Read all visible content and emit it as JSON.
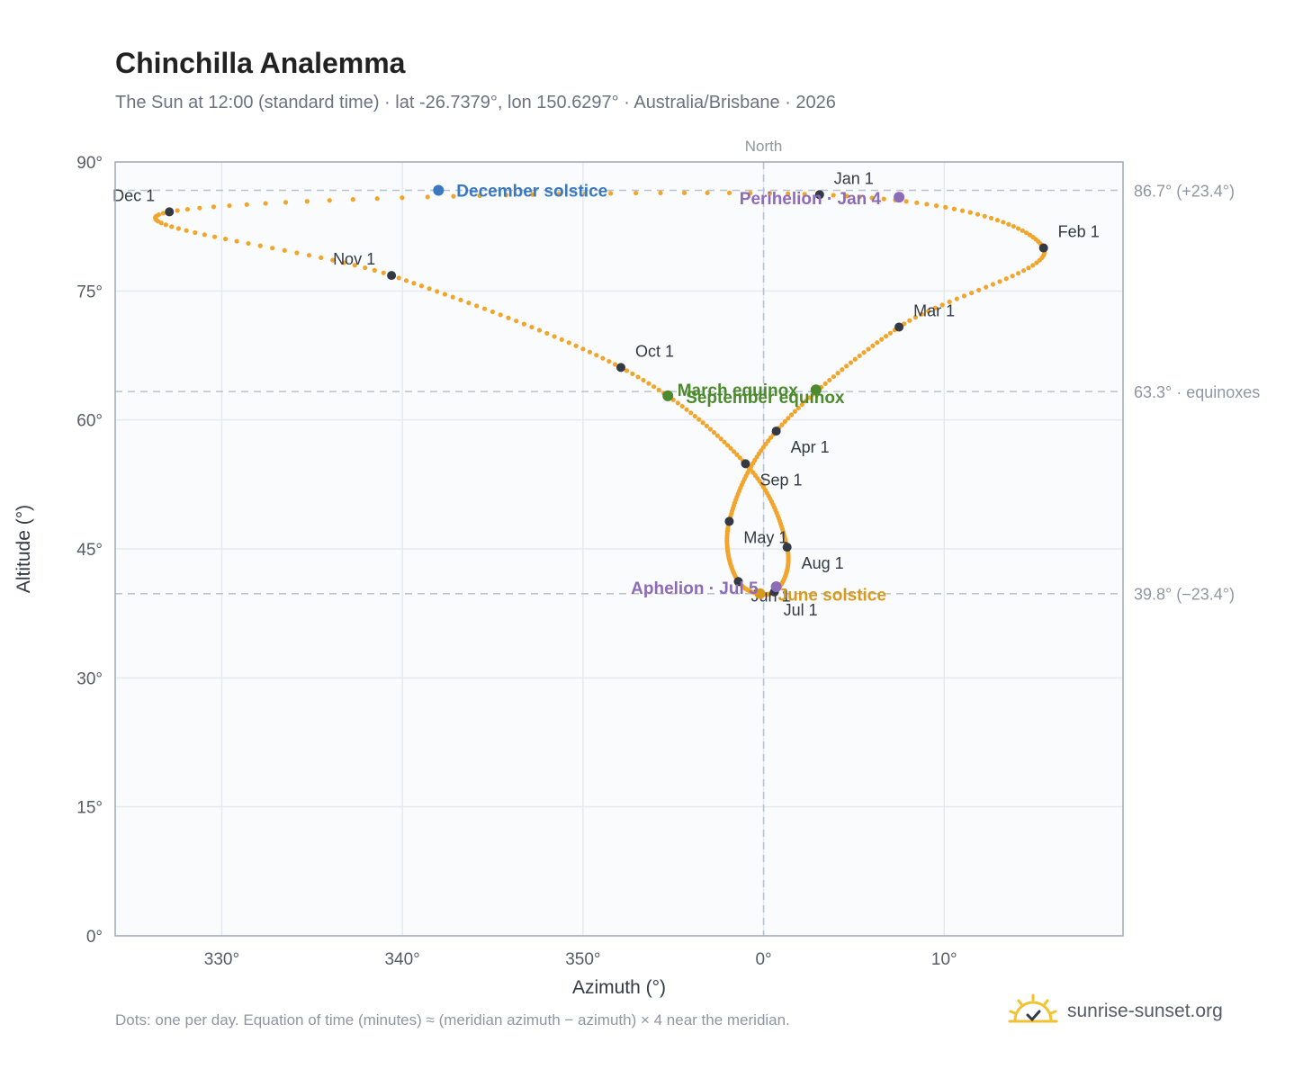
{
  "title": "Chinchilla Analemma",
  "subtitle": "The Sun at 12:00 (standard time) · lat -26.7379°, lon 150.6297° · Australia/Brisbane · 2026",
  "footnote": "Dots: one per day. Equation of time (minutes) ≈ (meridian azimuth − azimuth) × 4 near the meridian.",
  "brand": {
    "name": "sunrise-sunset.org",
    "icon": "sun-logo-icon"
  },
  "colors": {
    "path": "#f2a52c",
    "month_marker": "#333a44",
    "december_solstice": "#3a78c0",
    "june_solstice": "#d89a1e",
    "equinox": "#4d8a2e",
    "apsis": "#8e6bb8",
    "reference_line": "#b9c2cc",
    "plot_bg": "#f9fbfd",
    "grid": "#e5eaf0",
    "frame": "#a0a9b6"
  },
  "chart_data": {
    "type": "scatter",
    "xlabel": "Azimuth (°)",
    "ylabel": "Altitude (°)",
    "xlim": [
      -35.9,
      19.9
    ],
    "ylim": [
      0,
      90
    ],
    "x_ticks": [
      {
        "value": -30,
        "label": "330°"
      },
      {
        "value": -20,
        "label": "340°"
      },
      {
        "value": -10,
        "label": "350°"
      },
      {
        "value": 0,
        "label": "0°"
      },
      {
        "value": 10,
        "label": "10°"
      }
    ],
    "y_ticks": [
      {
        "value": 0,
        "label": "0°"
      },
      {
        "value": 15,
        "label": "15°"
      },
      {
        "value": 30,
        "label": "30°"
      },
      {
        "value": 45,
        "label": "45°"
      },
      {
        "value": 60,
        "label": "60°"
      },
      {
        "value": 75,
        "label": "75°"
      },
      {
        "value": 90,
        "label": "90°"
      }
    ],
    "grid": true,
    "meridian": {
      "x": 0,
      "label": "North"
    },
    "reference_lines": [
      {
        "y": 86.7,
        "label": "86.7° (+23.4°)"
      },
      {
        "y": 63.3,
        "label": "63.3° · equinoxes"
      },
      {
        "y": 39.8,
        "label": "39.8° (−23.4°)"
      }
    ],
    "month_points": [
      {
        "label": "Jan 1",
        "x": 3.1,
        "y": 86.2
      },
      {
        "label": "Feb 1",
        "x": 15.5,
        "y": 80.0
      },
      {
        "label": "Mar 1",
        "x": 7.5,
        "y": 70.8
      },
      {
        "label": "Apr 1",
        "x": 0.7,
        "y": 58.7
      },
      {
        "label": "May 1",
        "x": -1.9,
        "y": 48.2
      },
      {
        "label": "Jun 1",
        "x": -1.4,
        "y": 41.2
      },
      {
        "label": "Jul 1",
        "x": 0.6,
        "y": 40.0
      },
      {
        "label": "Aug 1",
        "x": 1.3,
        "y": 45.2
      },
      {
        "label": "Sep 1",
        "x": -1.0,
        "y": 54.9
      },
      {
        "label": "Oct 1",
        "x": -7.9,
        "y": 66.1
      },
      {
        "label": "Nov 1",
        "x": -20.6,
        "y": 76.8
      },
      {
        "label": "Dec 1",
        "x": -32.9,
        "y": 84.2
      }
    ],
    "events": [
      {
        "label": "December solstice",
        "x": -18.0,
        "y": 86.7,
        "color_key": "december_solstice"
      },
      {
        "label": "Perihelion · Jan 4",
        "x": 7.5,
        "y": 85.9,
        "color_key": "apsis"
      },
      {
        "label": "March equinox",
        "x": 2.9,
        "y": 63.5,
        "color_key": "equinox"
      },
      {
        "label": "September equinox",
        "x": -5.3,
        "y": 62.8,
        "color_key": "equinox"
      },
      {
        "label": "June solstice",
        "x": -0.2,
        "y": 39.8,
        "color_key": "june_solstice"
      },
      {
        "label": "Aphelion · Jul 5",
        "x": 0.7,
        "y": 40.6,
        "color_key": "apsis"
      }
    ]
  }
}
